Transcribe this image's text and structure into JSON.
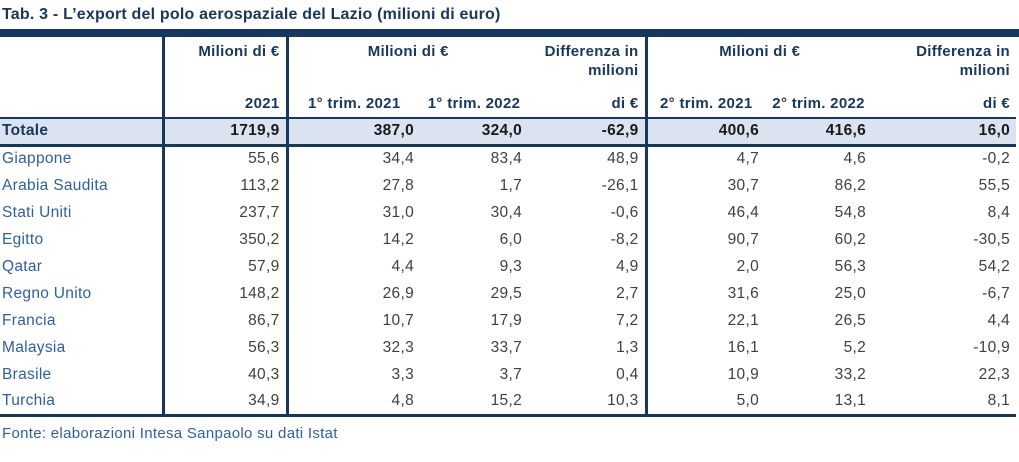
{
  "title": "Tab. 3 - L’export del polo aerospaziale del Lazio (milioni di euro)",
  "source": "Fonte: elaborazioni Intesa Sanpaolo su dati Istat",
  "colors": {
    "navy": "#17375d",
    "country_blue": "#2f5f9c",
    "totale_row_bg": "#dbe3f0",
    "number_text": "#3f3f3f",
    "totale_number_text": "#1a1a1a"
  },
  "header": {
    "milioni_2021": "Milioni di €",
    "milioni_trim1": "Milioni di €",
    "milioni_trim2": "Milioni di €",
    "diff1_line1": "Differenza in",
    "diff1_line2": "milioni",
    "diff2_line1": "Differenza in",
    "diff2_line2": "milioni",
    "col_2021": "2021",
    "col_trim1_2021": "1° trim. 2021",
    "col_trim1_2022": "1° trim. 2022",
    "col_diff1": "di €",
    "col_trim2_2021": "2° trim. 2021",
    "col_trim2_2022": "2° trim. 2022",
    "col_diff2": "di €"
  },
  "table": {
    "columns": [
      "",
      "2021",
      "1° trim. 2021",
      "1° trim. 2022",
      "Differenza in milioni di €",
      "2° trim. 2021",
      "2° trim. 2022",
      "Differenza in milioni di €"
    ],
    "totale": [
      "Totale",
      "1719,9",
      "387,0",
      "324,0",
      "-62,9",
      "400,6",
      "416,6",
      "16,0"
    ],
    "rows": [
      [
        "Giappone",
        "55,6",
        "34,4",
        "83,4",
        "48,9",
        "4,7",
        "4,6",
        "-0,2"
      ],
      [
        "Arabia Saudita",
        "113,2",
        "27,8",
        "1,7",
        "-26,1",
        "30,7",
        "86,2",
        "55,5"
      ],
      [
        "Stati Uniti",
        "237,7",
        "31,0",
        "30,4",
        "-0,6",
        "46,4",
        "54,8",
        "8,4"
      ],
      [
        "Egitto",
        "350,2",
        "14,2",
        "6,0",
        "-8,2",
        "90,7",
        "60,2",
        "-30,5"
      ],
      [
        "Qatar",
        "57,9",
        "4,4",
        "9,3",
        "4,9",
        "2,0",
        "56,3",
        "54,2"
      ],
      [
        "Regno Unito",
        "148,2",
        "26,9",
        "29,5",
        "2,7",
        "31,6",
        "25,0",
        "-6,7"
      ],
      [
        "Francia",
        "86,7",
        "10,7",
        "17,9",
        "7,2",
        "22,1",
        "26,5",
        "4,4"
      ],
      [
        "Malaysia",
        "56,3",
        "32,3",
        "33,7",
        "1,3",
        "16,1",
        "5,2",
        "-10,9"
      ],
      [
        "Brasile",
        "40,3",
        "3,3",
        "3,7",
        "0,4",
        "10,9",
        "33,2",
        "22,3"
      ],
      [
        "Turchia",
        "34,9",
        "4,8",
        "15,2",
        "10,3",
        "5,0",
        "13,1",
        "8,1"
      ]
    ]
  }
}
